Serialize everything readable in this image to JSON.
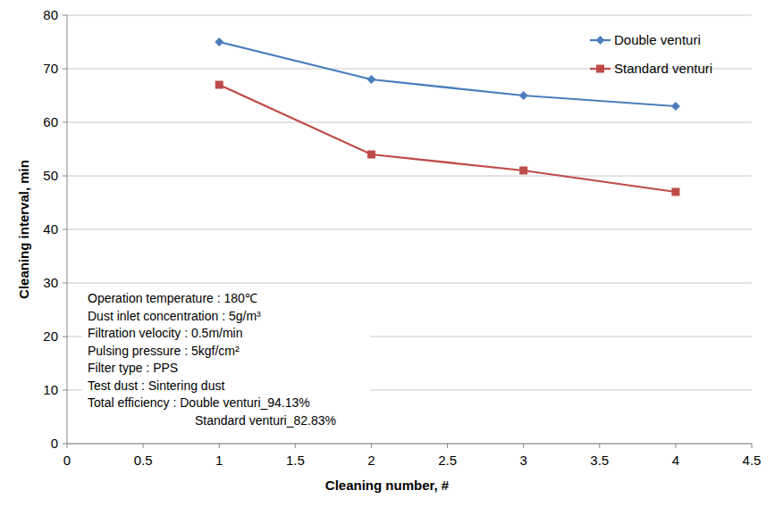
{
  "chart_data": {
    "type": "line",
    "x_label": "Cleaning number, #",
    "y_label": "Cleaning interval, min",
    "x": [
      1,
      2,
      3,
      4
    ],
    "series": [
      {
        "name": "Double venturi",
        "color": "#4a7ebb",
        "marker": "diamond",
        "values": [
          75,
          68,
          65,
          63
        ]
      },
      {
        "name": "Standard venturi",
        "color": "#be4b48",
        "marker": "square",
        "values": [
          67,
          54,
          51,
          47
        ]
      }
    ],
    "xlim": [
      0,
      4.5
    ],
    "xticks": [
      0,
      0.5,
      1,
      1.5,
      2,
      2.5,
      3,
      3.5,
      4,
      4.5
    ],
    "ylim": [
      0,
      80
    ],
    "yticks": [
      0,
      10,
      20,
      30,
      40,
      50,
      60,
      70,
      80
    ],
    "grid": true,
    "legend": "top-right",
    "annotations": [
      "Operation temperature : 180℃",
      "Dust inlet concentration : 5g/m³",
      "Filtration velocity : 0.5m/min",
      "Pulsing pressure : 5kgf/cm²",
      "Filter type : PPS",
      "Test dust : Sintering dust",
      "Total efficiency : Double venturi_94.13%",
      "Standard venturi_82.83%"
    ]
  }
}
